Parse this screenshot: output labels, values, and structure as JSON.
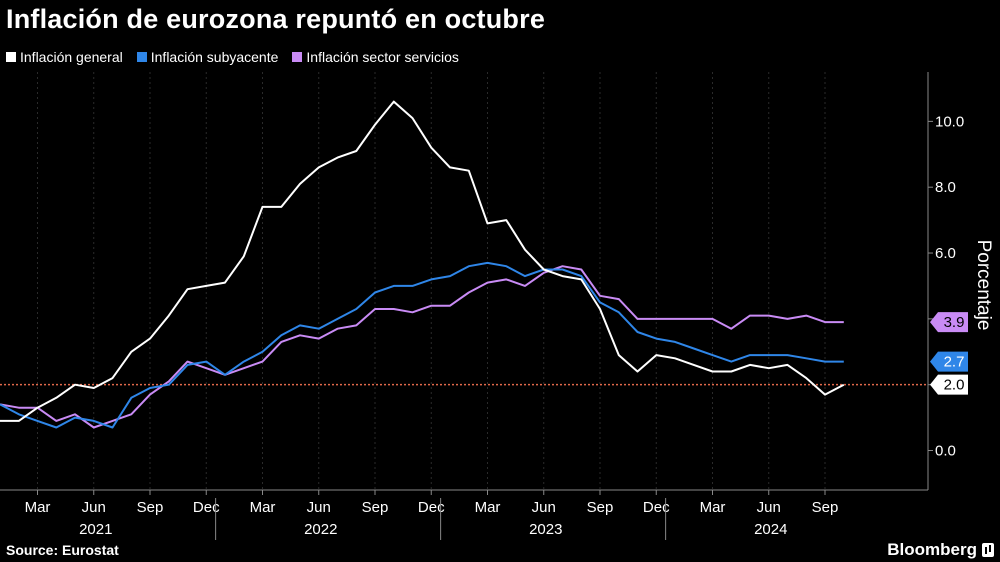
{
  "title": "Inflación de eurozona repuntó en octubre",
  "legend": [
    {
      "label": "Inflación general",
      "color": "#ffffff"
    },
    {
      "label": "Inflación subyacente",
      "color": "#2f86e8"
    },
    {
      "label": "Inflación sector servicios",
      "color": "#c98bf5"
    }
  ],
  "source": "Source: Eurostat",
  "brand": "Bloomberg",
  "chart_data": {
    "type": "line",
    "ylabel": "Porcentaje",
    "ylim": [
      -1.2,
      11.5
    ],
    "yticks": [
      "0.0",
      "2.0",
      "4.0",
      "6.0",
      "8.0",
      "10.0"
    ],
    "ytick_values": [
      0,
      2,
      4,
      6,
      8,
      10
    ],
    "x": [
      "2021-01",
      "2021-02",
      "2021-03",
      "2021-04",
      "2021-05",
      "2021-06",
      "2021-07",
      "2021-08",
      "2021-09",
      "2021-10",
      "2021-11",
      "2021-12",
      "2022-01",
      "2022-02",
      "2022-03",
      "2022-04",
      "2022-05",
      "2022-06",
      "2022-07",
      "2022-08",
      "2022-09",
      "2022-10",
      "2022-11",
      "2022-12",
      "2023-01",
      "2023-02",
      "2023-03",
      "2023-04",
      "2023-05",
      "2023-06",
      "2023-07",
      "2023-08",
      "2023-09",
      "2023-10",
      "2023-11",
      "2023-12",
      "2024-01",
      "2024-02",
      "2024-03",
      "2024-04",
      "2024-05",
      "2024-06",
      "2024-07",
      "2024-08",
      "2024-09",
      "2024-10"
    ],
    "xticks": [
      "Mar",
      "Jun",
      "Sep",
      "Dec",
      "Mar",
      "Jun",
      "Sep",
      "Dec",
      "Mar",
      "Jun",
      "Sep",
      "Dec",
      "Mar",
      "Jun",
      "Sep"
    ],
    "xtick_months": [
      "2021-03",
      "2021-06",
      "2021-09",
      "2021-12",
      "2022-03",
      "2022-06",
      "2022-09",
      "2022-12",
      "2023-03",
      "2023-06",
      "2023-09",
      "2023-12",
      "2024-03",
      "2024-06",
      "2024-09"
    ],
    "years": [
      "2021",
      "2022",
      "2023",
      "2024"
    ],
    "reference_line": 2.0,
    "series": [
      {
        "name": "Inflación general",
        "color": "#ffffff",
        "values": [
          0.9,
          0.9,
          1.3,
          1.6,
          2.0,
          1.9,
          2.2,
          3.0,
          3.4,
          4.1,
          4.9,
          5.0,
          5.1,
          5.9,
          7.4,
          7.4,
          8.1,
          8.6,
          8.9,
          9.1,
          9.9,
          10.6,
          10.1,
          9.2,
          8.6,
          8.5,
          6.9,
          7.0,
          6.1,
          5.5,
          5.3,
          5.2,
          4.3,
          2.9,
          2.4,
          2.9,
          2.8,
          2.6,
          2.4,
          2.4,
          2.6,
          2.5,
          2.6,
          2.2,
          1.7,
          2.0
        ]
      },
      {
        "name": "Inflación subyacente",
        "color": "#2f86e8",
        "values": [
          1.4,
          1.1,
          0.9,
          0.7,
          1.0,
          0.9,
          0.7,
          1.6,
          1.9,
          2.0,
          2.6,
          2.7,
          2.3,
          2.7,
          3.0,
          3.5,
          3.8,
          3.7,
          4.0,
          4.3,
          4.8,
          5.0,
          5.0,
          5.2,
          5.3,
          5.6,
          5.7,
          5.6,
          5.3,
          5.5,
          5.5,
          5.3,
          4.5,
          4.2,
          3.6,
          3.4,
          3.3,
          3.1,
          2.9,
          2.7,
          2.9,
          2.9,
          2.9,
          2.8,
          2.7,
          2.7
        ]
      },
      {
        "name": "Inflación sector servicios",
        "color": "#c98bf5",
        "values": [
          1.4,
          1.3,
          1.3,
          0.9,
          1.1,
          0.7,
          0.9,
          1.1,
          1.7,
          2.1,
          2.7,
          2.5,
          2.3,
          2.5,
          2.7,
          3.3,
          3.5,
          3.4,
          3.7,
          3.8,
          4.3,
          4.3,
          4.2,
          4.4,
          4.4,
          4.8,
          5.1,
          5.2,
          5.0,
          5.4,
          5.6,
          5.5,
          4.7,
          4.6,
          4.0,
          4.0,
          4.0,
          4.0,
          4.0,
          3.7,
          4.1,
          4.1,
          4.0,
          4.1,
          3.9,
          3.9
        ]
      }
    ],
    "end_labels": [
      {
        "text": "3.9",
        "color": "#c98bf5",
        "text_color": "#000000"
      },
      {
        "text": "2.7",
        "color": "#2f86e8",
        "text_color": "#ffffff"
      },
      {
        "text": "2.0",
        "color": "#ffffff",
        "text_color": "#000000"
      }
    ]
  }
}
